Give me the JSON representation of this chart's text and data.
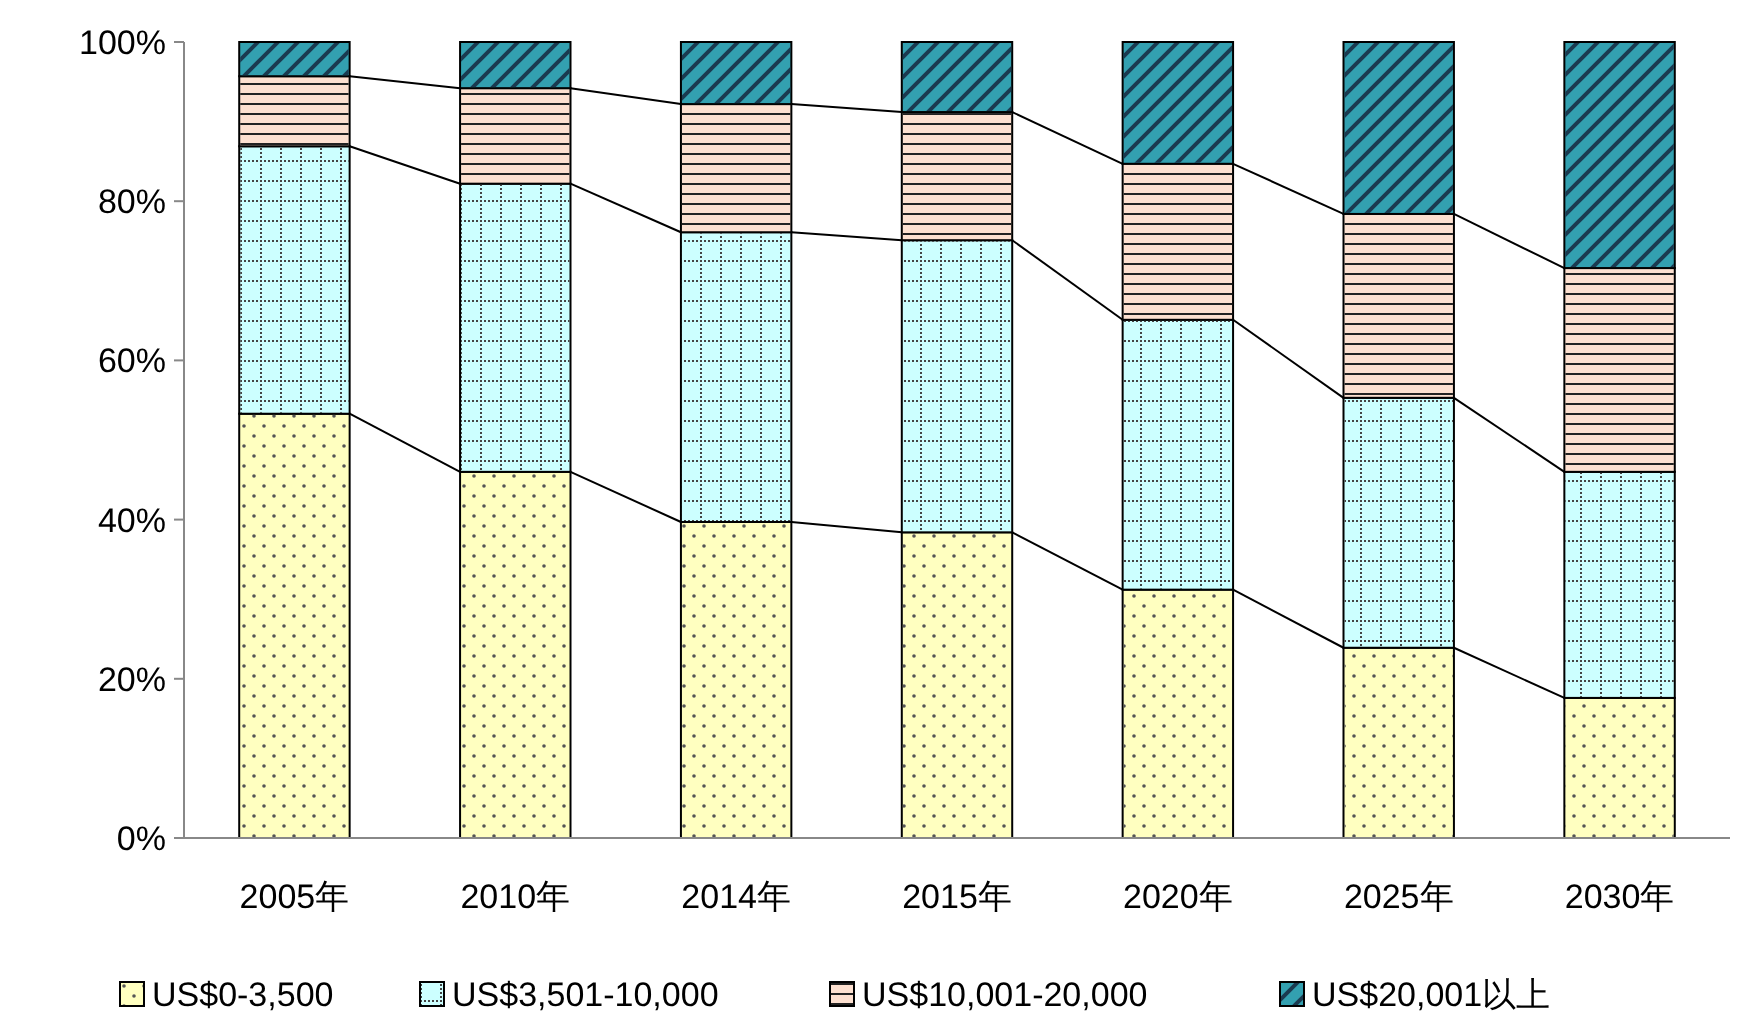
{
  "chart_data": {
    "type": "bar",
    "stacked": true,
    "categories": [
      "2005年",
      "2010年",
      "2014年",
      "2015年",
      "2020年",
      "2025年",
      "2030年"
    ],
    "series": [
      {
        "name": "US$0-3,500",
        "color": "#ffffc0",
        "values": [
          53.3,
          46.0,
          39.7,
          38.4,
          31.2,
          23.9,
          17.6
        ]
      },
      {
        "name": "US$3,501-10,000",
        "color": "#ccffff",
        "values": [
          33.6,
          36.2,
          36.4,
          36.7,
          33.9,
          31.4,
          28.4
        ]
      },
      {
        "name": "US$10,001-20,000",
        "color": "#fde0d0",
        "values": [
          8.8,
          12.0,
          16.1,
          16.1,
          19.6,
          23.1,
          25.6
        ]
      },
      {
        "name": "US$20,001以上",
        "color": "#33a0b0",
        "values": [
          4.3,
          5.8,
          7.8,
          8.8,
          15.3,
          21.6,
          28.4
        ]
      }
    ],
    "ylim": [
      0,
      100
    ],
    "yticks": [
      {
        "value": 0,
        "label": "0%"
      },
      {
        "value": 20,
        "label": "20%"
      },
      {
        "value": 40,
        "label": "40%"
      },
      {
        "value": 60,
        "label": "60%"
      },
      {
        "value": 80,
        "label": "80%"
      },
      {
        "value": 100,
        "label": "100%"
      }
    ],
    "grid": false,
    "legend": "bottom"
  }
}
